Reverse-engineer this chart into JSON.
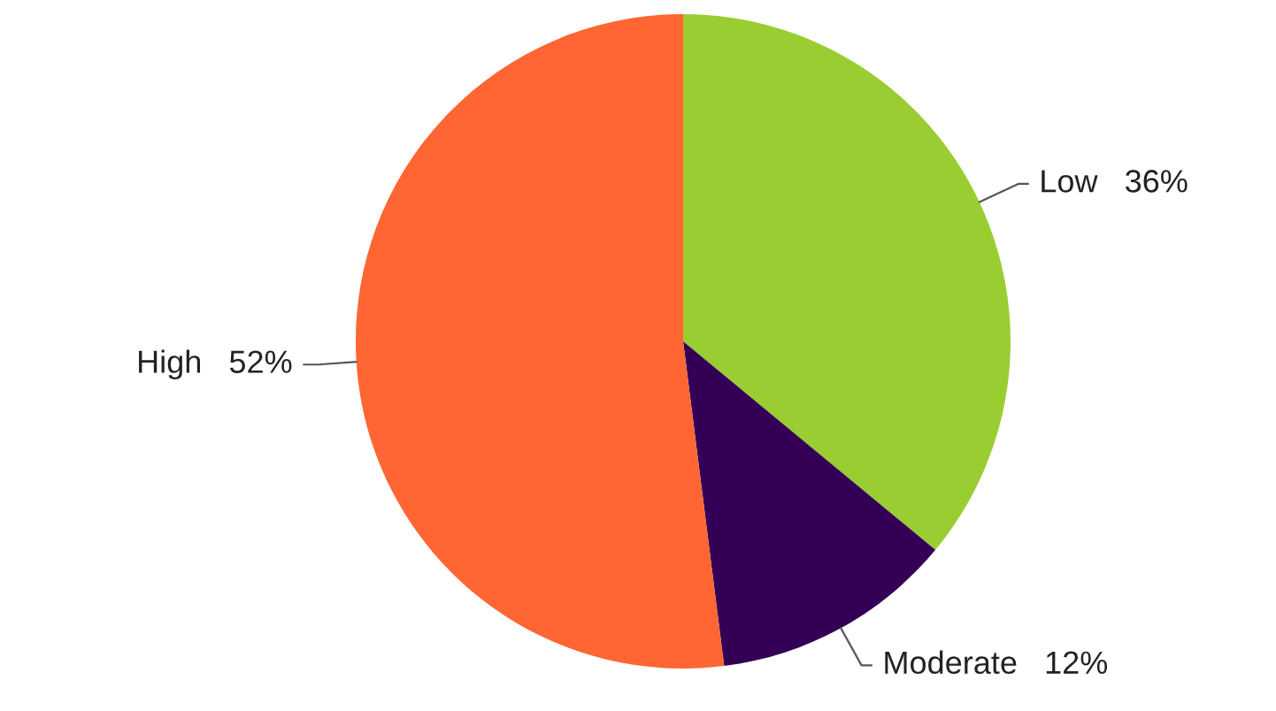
{
  "chart_data": {
    "type": "pie",
    "categories": [
      "Low",
      "Moderate",
      "High"
    ],
    "values": [
      36,
      12,
      52
    ],
    "value_labels": [
      "36%",
      "12%",
      "52%"
    ],
    "colors": [
      "#9acd32",
      "#330055",
      "#ff6633"
    ]
  }
}
